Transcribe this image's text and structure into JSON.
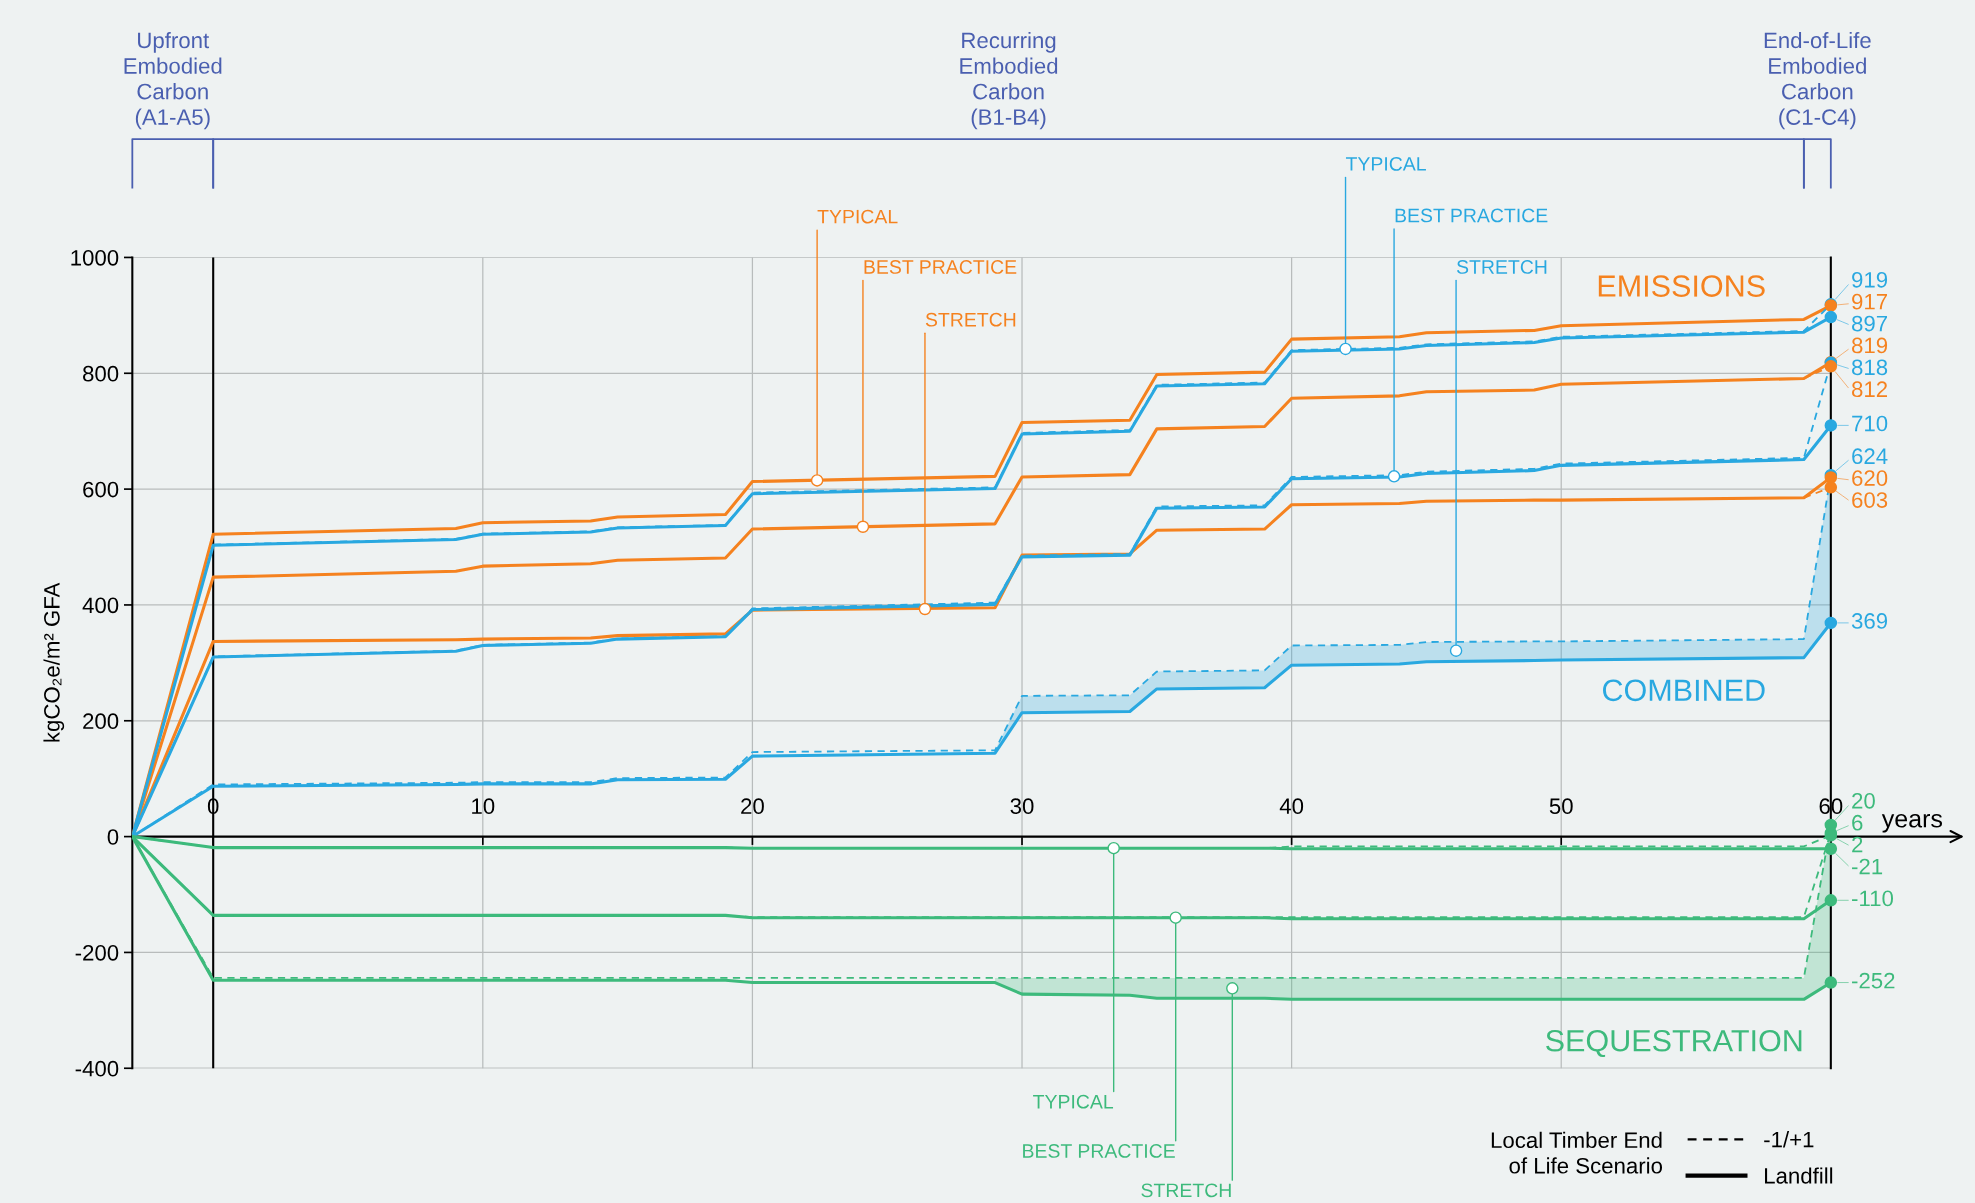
{
  "chart_data": {
    "type": "line",
    "ylabel": "kgCO₂e/m² GFA",
    "xlabel": "years",
    "x": [
      -3,
      0,
      9,
      10,
      14,
      15,
      19,
      20,
      29,
      30,
      34,
      35,
      39,
      40,
      44,
      45,
      49,
      50,
      59,
      60
    ],
    "xlim": [
      -3,
      60
    ],
    "xticks": [
      0,
      10,
      20,
      30,
      40,
      50,
      60
    ],
    "ylim": [
      -400,
      1000
    ],
    "yticks": [
      -400,
      -200,
      0,
      200,
      400,
      600,
      800,
      1000
    ],
    "grid": true,
    "legend_title": "Local Timber End\nof Life Scenario",
    "series": [
      {
        "color": "#f5821f",
        "line_style": "solid",
        "values": [
          0,
          522,
          532,
          542,
          545,
          552,
          556,
          613,
          622,
          715,
          719,
          798,
          802,
          859,
          863,
          870,
          874,
          882,
          893,
          917
        ],
        "value_labels": [
          null,
          null,
          null,
          null,
          null,
          null,
          null,
          null,
          null,
          null,
          null,
          null,
          null,
          null,
          null,
          null,
          null,
          null,
          null,
          "917"
        ]
      },
      {
        "color": "#f5821f",
        "line_style": "solid",
        "values": [
          0,
          448,
          458,
          467,
          471,
          477,
          481,
          531,
          540,
          621,
          625,
          704,
          708,
          757,
          761,
          768,
          771,
          781,
          791,
          819
        ],
        "value_labels": [
          null,
          null,
          null,
          null,
          null,
          null,
          null,
          null,
          null,
          null,
          null,
          null,
          null,
          null,
          null,
          null,
          null,
          null,
          null,
          "819"
        ]
      },
      {
        "color": "#f5821f",
        "line_style": "dashed",
        "values": [
          null,
          null,
          null,
          null,
          null,
          null,
          null,
          null,
          null,
          null,
          null,
          null,
          null,
          null,
          null,
          null,
          null,
          null,
          791,
          812
        ],
        "value_labels": [
          null,
          null,
          null,
          null,
          null,
          null,
          null,
          null,
          null,
          null,
          null,
          null,
          null,
          null,
          null,
          null,
          null,
          null,
          null,
          "812"
        ]
      },
      {
        "color": "#f5821f",
        "line_style": "solid",
        "values": [
          0,
          337,
          340,
          341,
          343,
          347,
          350,
          391,
          395,
          486,
          488,
          529,
          531,
          573,
          575,
          579,
          581,
          581,
          585,
          620
        ],
        "value_labels": [
          null,
          null,
          null,
          null,
          null,
          null,
          null,
          null,
          null,
          null,
          null,
          null,
          null,
          null,
          null,
          null,
          null,
          null,
          null,
          "620"
        ]
      },
      {
        "color": "#f5821f",
        "line_style": "dashed",
        "values": [
          null,
          null,
          null,
          null,
          null,
          null,
          null,
          null,
          null,
          null,
          null,
          null,
          null,
          null,
          null,
          null,
          null,
          null,
          585,
          603
        ],
        "value_labels": [
          null,
          null,
          null,
          null,
          null,
          null,
          null,
          null,
          null,
          null,
          null,
          null,
          null,
          null,
          null,
          null,
          null,
          null,
          null,
          "603"
        ]
      },
      {
        "color": "#29a8e0",
        "line_style": "solid",
        "values": [
          0,
          503,
          513,
          522,
          526,
          533,
          537,
          592,
          601,
          695,
          700,
          778,
          782,
          838,
          842,
          848,
          853,
          861,
          871,
          897
        ],
        "value_labels": [
          null,
          null,
          null,
          null,
          null,
          null,
          null,
          null,
          null,
          null,
          null,
          null,
          null,
          null,
          null,
          null,
          null,
          null,
          null,
          "897"
        ]
      },
      {
        "color": "#29a8e0",
        "line_style": "dashed",
        "values": [
          0,
          504,
          514,
          523,
          527,
          534,
          538,
          594,
          603,
          697,
          702,
          780,
          784,
          840,
          844,
          850,
          855,
          863,
          873,
          919
        ],
        "value_labels": [
          null,
          null,
          null,
          null,
          null,
          null,
          null,
          null,
          null,
          null,
          null,
          null,
          null,
          null,
          null,
          null,
          null,
          null,
          null,
          "919"
        ]
      },
      {
        "color": "#29a8e0",
        "line_style": "solid",
        "values": [
          0,
          310,
          320,
          330,
          334,
          341,
          345,
          392,
          401,
          483,
          486,
          567,
          569,
          618,
          621,
          627,
          632,
          641,
          651,
          710
        ],
        "value_labels": [
          null,
          null,
          null,
          null,
          null,
          null,
          null,
          null,
          null,
          null,
          null,
          null,
          null,
          null,
          null,
          null,
          null,
          null,
          null,
          "710"
        ]
      },
      {
        "color": "#29a8e0",
        "line_style": "dashed",
        "values": [
          0,
          311,
          321,
          331,
          335,
          342,
          346,
          394,
          404,
          485,
          488,
          570,
          572,
          621,
          624,
          630,
          635,
          644,
          654,
          818
        ],
        "value_labels": [
          null,
          null,
          null,
          null,
          null,
          null,
          null,
          null,
          null,
          null,
          null,
          null,
          null,
          null,
          null,
          null,
          null,
          null,
          null,
          "818"
        ]
      },
      {
        "color": "#29a8e0",
        "line_style": "solid",
        "values": [
          0,
          87,
          90,
          91,
          91,
          98,
          99,
          139,
          144,
          214,
          216,
          255,
          257,
          296,
          298,
          302,
          304,
          305,
          309,
          369
        ],
        "value_labels": [
          null,
          null,
          null,
          null,
          null,
          null,
          null,
          null,
          null,
          null,
          null,
          null,
          null,
          null,
          null,
          null,
          null,
          null,
          null,
          "369"
        ]
      },
      {
        "color": "#29a8e0",
        "line_style": "dashed",
        "values": [
          0,
          90,
          93,
          94,
          94,
          101,
          102,
          146,
          149,
          243,
          244,
          285,
          287,
          330,
          331,
          336,
          337,
          337,
          341,
          624
        ],
        "value_labels": [
          null,
          null,
          null,
          null,
          null,
          null,
          null,
          null,
          null,
          null,
          null,
          null,
          null,
          null,
          null,
          null,
          null,
          null,
          null,
          "624"
        ],
        "lower": [
          null,
          null,
          null,
          null,
          null,
          null,
          null,
          null,
          144,
          214,
          216,
          255,
          257,
          296,
          298,
          302,
          304,
          305,
          309,
          369
        ],
        "upper": [
          null,
          null,
          null,
          null,
          null,
          null,
          null,
          null,
          149,
          243,
          244,
          285,
          287,
          330,
          331,
          336,
          337,
          337,
          341,
          624
        ]
      },
      {
        "color": "#3dba7c",
        "line_style": "solid",
        "values": [
          0,
          -19,
          -19,
          -19,
          -19,
          -19,
          -19,
          -20,
          -20,
          -20,
          -20,
          -20,
          -20,
          -21,
          -21,
          -21,
          -21,
          -21,
          -21,
          -21
        ],
        "value_labels": [
          null,
          null,
          null,
          null,
          null,
          null,
          null,
          null,
          null,
          null,
          null,
          null,
          null,
          null,
          null,
          null,
          null,
          null,
          null,
          "-21"
        ]
      },
      {
        "color": "#3dba7c",
        "line_style": "dashed",
        "values": [
          0,
          -19,
          -19,
          -19,
          -19,
          -19,
          -19,
          -20,
          -20,
          -20,
          -20,
          -20,
          -20,
          -17,
          -17,
          -17,
          -17,
          -17,
          -17,
          2
        ],
        "value_labels": [
          null,
          null,
          null,
          null,
          null,
          null,
          null,
          null,
          null,
          null,
          null,
          null,
          null,
          null,
          null,
          null,
          null,
          null,
          null,
          "2"
        ]
      },
      {
        "color": "#3dba7c",
        "line_style": "solid",
        "values": [
          0,
          -136,
          -136,
          -136,
          -136,
          -136,
          -136,
          -140,
          -140,
          -140,
          -140,
          -140,
          -140,
          -142,
          -142,
          -142,
          -142,
          -142,
          -142,
          -110
        ],
        "value_labels": [
          null,
          null,
          null,
          null,
          null,
          null,
          null,
          null,
          null,
          null,
          null,
          null,
          null,
          null,
          null,
          null,
          null,
          null,
          null,
          "-110"
        ]
      },
      {
        "color": "#3dba7c",
        "line_style": "dashed",
        "values": [
          0,
          -136,
          -136,
          -136,
          -136,
          -136,
          -136,
          -139,
          -139,
          -139,
          -139,
          -139,
          -139,
          -139,
          -139,
          -139,
          -139,
          -139,
          -139,
          6
        ],
        "value_labels": [
          null,
          null,
          null,
          null,
          null,
          null,
          null,
          null,
          null,
          null,
          null,
          null,
          null,
          null,
          null,
          null,
          null,
          null,
          null,
          "6"
        ]
      },
      {
        "color": "#3dba7c",
        "line_style": "solid",
        "values": [
          0,
          -248,
          -248,
          -248,
          -248,
          -248,
          -248,
          -252,
          -252,
          -272,
          -274,
          -279,
          -279,
          -281,
          -281,
          -281,
          -281,
          -281,
          -281,
          -252
        ],
        "value_labels": [
          null,
          null,
          null,
          null,
          null,
          null,
          null,
          null,
          null,
          null,
          null,
          null,
          null,
          null,
          null,
          null,
          null,
          null,
          null,
          "-252"
        ]
      },
      {
        "color": "#3dba7c",
        "line_style": "dashed",
        "values": [
          0,
          -244,
          -244,
          -244,
          -244,
          -244,
          -244,
          -244,
          -244,
          -244,
          -244,
          -244,
          -244,
          -244,
          -244,
          -244,
          -244,
          -244,
          -244,
          20
        ],
        "value_labels": [
          null,
          null,
          null,
          null,
          null,
          null,
          null,
          null,
          null,
          null,
          null,
          null,
          null,
          null,
          null,
          null,
          null,
          null,
          null,
          "20"
        ],
        "lower": [
          null,
          null,
          null,
          null,
          null,
          null,
          null,
          null,
          -252,
          -272,
          -274,
          -279,
          -279,
          -281,
          -281,
          -281,
          -281,
          -281,
          -281,
          -252
        ],
        "upper": [
          null,
          null,
          null,
          null,
          null,
          null,
          null,
          null,
          -244,
          -244,
          -244,
          -244,
          -244,
          -244,
          -244,
          -244,
          -244,
          -244,
          -244,
          20
        ]
      }
    ],
    "ref_lines": [
      {
        "axis": "x",
        "value": 0,
        "color": "#000000"
      }
    ],
    "annotations": [
      "EMISSIONS",
      "COMBINED",
      "SEQUESTRATION",
      {
        "text": "TYPICAL",
        "x": 22.4,
        "y": 615
      },
      {
        "text": "BEST PRACTICE",
        "x": 24.1,
        "y": 535
      },
      {
        "text": "STRETCH",
        "x": 26.4,
        "y": 393
      },
      {
        "text": "TYPICAL",
        "x": 42.0,
        "y": 842
      },
      {
        "text": "BEST PRACTICE",
        "x": 43.8,
        "y": 622
      },
      {
        "text": "STRETCH",
        "x": 46.1,
        "y": 321
      },
      {
        "text": "TYPICAL",
        "x": 33.4,
        "y": -20
      },
      {
        "text": "BEST PRACTICE",
        "x": 35.7,
        "y": -140
      },
      {
        "text": "STRETCH",
        "x": 37.8,
        "y": -262
      },
      "-1/+1",
      "Landfill",
      "Upfront\nEmbodied\nCarbon\n(A1-A5)",
      "Recurring\nEmbodied\nCarbon\n(B1-B4)",
      "End-of-Life\nEmbodied\nCarbon\n(C1-C4)"
    ]
  }
}
